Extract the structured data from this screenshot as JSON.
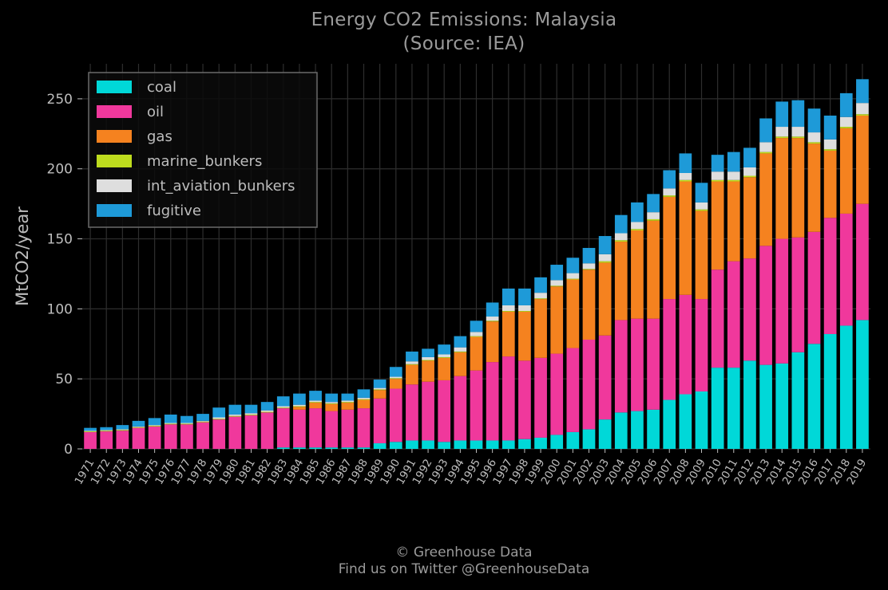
{
  "title": "Energy CO2 Emissions: Malaysia",
  "subtitle": "(Source: IEA)",
  "footer": {
    "line1": "© Greenhouse Data",
    "line2": "Find us on Twitter @GreenhouseData"
  },
  "colors": {
    "background": "#000000",
    "grid": "#2e2e2e",
    "text": "#bdbdbd",
    "legend_border": "#6a6a6a",
    "coal": "#00d8d8",
    "oil": "#f0389c",
    "gas": "#f5821f",
    "marine_bunkers": "#bedc1e",
    "int_aviation_bunkers": "#dedede",
    "fugitive": "#1e9ad8"
  },
  "chart_data": {
    "type": "bar",
    "stacked": true,
    "title": "Energy CO2 Emissions: Malaysia\n(Source: IEA)",
    "xlabel": "",
    "ylabel": "MtCO2/year",
    "ylim": [
      0,
      275
    ],
    "yticks": [
      0,
      50,
      100,
      150,
      200,
      250
    ],
    "grid": true,
    "legend_position": "top-left",
    "categories": [
      "1971",
      "1972",
      "1973",
      "1974",
      "1975",
      "1976",
      "1977",
      "1978",
      "1979",
      "1980",
      "1981",
      "1982",
      "1983",
      "1984",
      "1985",
      "1986",
      "1987",
      "1988",
      "1989",
      "1990",
      "1991",
      "1992",
      "1993",
      "1994",
      "1995",
      "1996",
      "1997",
      "1998",
      "1999",
      "2000",
      "2001",
      "2002",
      "2003",
      "2004",
      "2005",
      "2006",
      "2007",
      "2008",
      "2009",
      "2010",
      "2011",
      "2012",
      "2013",
      "2014",
      "2015",
      "2016",
      "2017",
      "2018",
      "2019"
    ],
    "series": [
      {
        "name": "coal",
        "values": [
          0,
          0,
          0,
          0,
          0,
          0,
          0,
          0,
          0,
          0,
          0,
          0,
          1,
          1,
          1,
          1,
          1,
          1,
          4,
          5,
          6,
          6,
          5,
          6,
          6,
          6,
          6,
          7,
          8,
          10,
          12,
          14,
          21,
          26,
          27,
          28,
          35,
          39,
          41,
          58,
          58,
          63,
          60,
          61,
          69,
          75,
          82,
          88,
          92
        ]
      },
      {
        "name": "oil",
        "values": [
          12,
          12.5,
          13,
          15,
          16,
          17.5,
          17.5,
          19,
          21,
          23,
          24,
          26,
          28,
          27,
          28,
          26,
          27,
          28,
          32,
          38,
          40,
          42,
          44,
          46,
          50,
          56,
          60,
          56,
          57,
          58,
          60,
          64,
          60,
          66,
          66,
          65,
          72,
          71,
          66,
          70,
          76,
          73,
          85,
          89,
          82,
          80,
          83,
          80,
          83
        ]
      },
      {
        "name": "gas",
        "values": [
          0,
          0,
          0,
          0,
          0,
          0,
          0,
          0,
          0,
          0,
          0,
          0,
          0,
          2,
          4,
          5,
          5,
          6,
          6,
          7,
          14,
          15,
          16,
          17,
          24,
          29,
          32,
          35,
          42,
          48,
          49,
          50,
          52,
          56,
          63,
          70,
          73,
          81,
          63,
          63,
          57,
          58,
          66,
          72,
          71,
          63,
          48,
          61,
          63
        ]
      },
      {
        "name": "marine_bunkers",
        "values": [
          0.5,
          0.5,
          0.5,
          0.5,
          0.5,
          0.5,
          0.5,
          0.5,
          0.5,
          0.5,
          0.5,
          0.5,
          0.5,
          0.5,
          0.5,
          0.5,
          0.5,
          0.5,
          0.5,
          0.5,
          0.5,
          0.5,
          0.5,
          0.5,
          0.5,
          0.5,
          0.5,
          0.5,
          0.5,
          0.5,
          0.5,
          0.5,
          1,
          1,
          1,
          1,
          1,
          1,
          1,
          1,
          1,
          1,
          1,
          1,
          1,
          1,
          1,
          1,
          1
        ]
      },
      {
        "name": "int_aviation_bunkers",
        "values": [
          0.5,
          0.5,
          0.5,
          0.5,
          0.5,
          0.5,
          0.5,
          0.5,
          1,
          1,
          1,
          1,
          1,
          1,
          1,
          1,
          1,
          1,
          1,
          1,
          2,
          2,
          2,
          3,
          3,
          3,
          4,
          4,
          4,
          4,
          4,
          4,
          5,
          5,
          5,
          5,
          5,
          5,
          5,
          6,
          6,
          6,
          7,
          7,
          7,
          7,
          7,
          7,
          8
        ]
      },
      {
        "name": "fugitive",
        "values": [
          2,
          2,
          3,
          4,
          5,
          6,
          5,
          5,
          7,
          7,
          6,
          6,
          7,
          8,
          7,
          6,
          5,
          6,
          6,
          7,
          7,
          6,
          7,
          8,
          8,
          10,
          12,
          12,
          11,
          11,
          11,
          11,
          13,
          13,
          14,
          13,
          13,
          14,
          14,
          12,
          14,
          14,
          17,
          18,
          19,
          17,
          17,
          17,
          17
        ]
      }
    ]
  }
}
